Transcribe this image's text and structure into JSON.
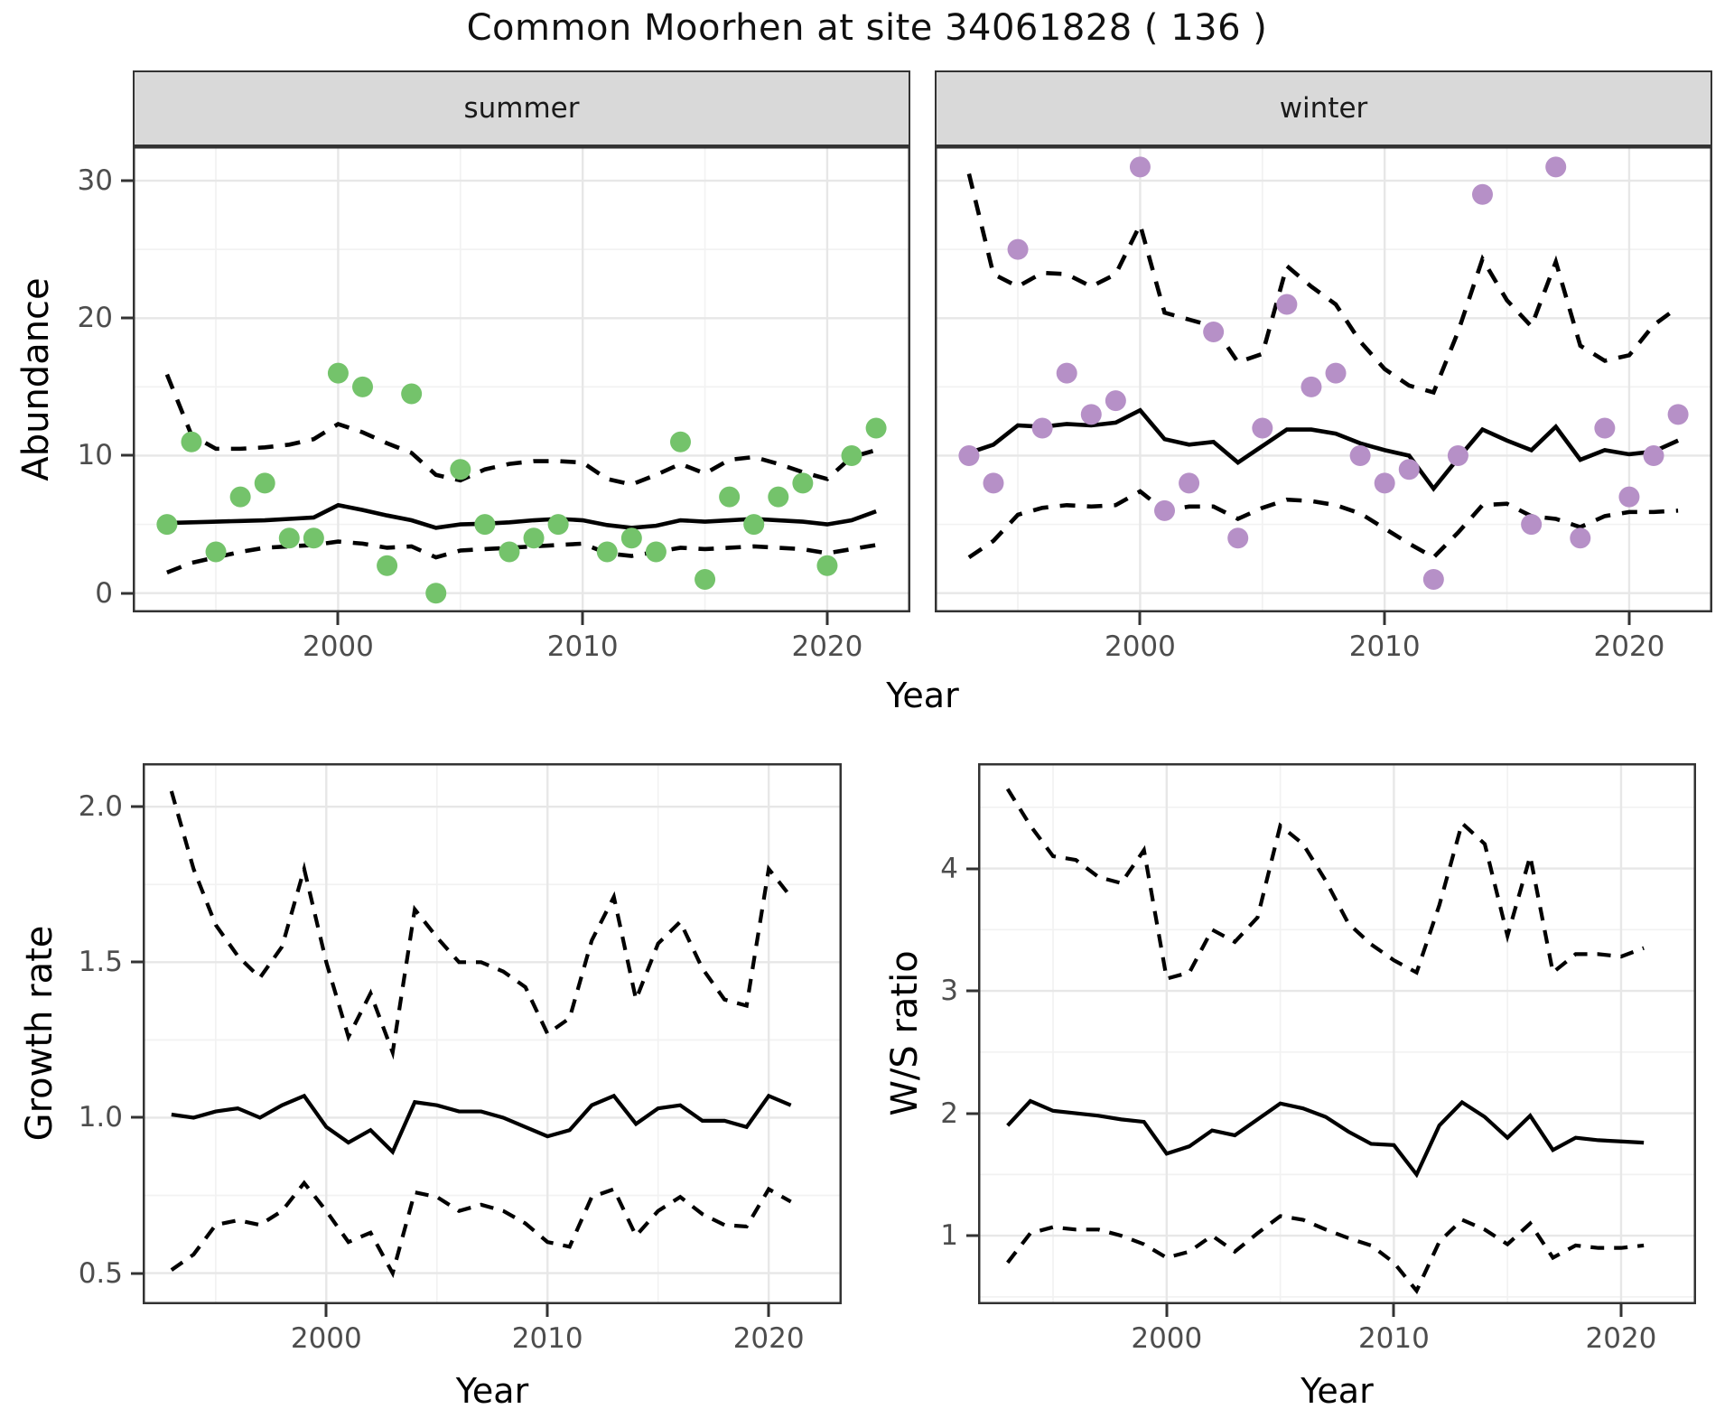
{
  "title": "Common Moorhen at site 34061828 ( 136 )",
  "facets": {
    "summer": "summer",
    "winter": "winter"
  },
  "axis_labels": {
    "y_top": "Abundance",
    "x": "Year",
    "y_growth": "Growth rate",
    "y_ws": "W/S ratio"
  },
  "colors": {
    "summer_point": "#74c36b",
    "winter_point": "#b690c7",
    "line": "#000000",
    "grid_major": "#e7e7e7",
    "grid_minor": "#f2f2f2",
    "strip_bg": "#d9d9d9",
    "panel_border": "#333333",
    "tick_label": "#4d4d4d"
  },
  "chart_data": [
    {
      "id": "summer",
      "type": "scatter",
      "facet_label": "summer",
      "xlabel": "Year",
      "ylabel": "Abundance",
      "xlim": [
        1991.6,
        2023.4
      ],
      "ylim": [
        -1.4,
        32.5
      ],
      "grid": true,
      "line_width": 4.6,
      "dash": "17 13",
      "point_radius": 11.5,
      "point_color": "#74c36b",
      "x_ticks": {
        "values": [
          2000,
          2010,
          2020
        ],
        "labels": [
          "2000",
          "2010",
          "2020"
        ],
        "minor": [
          1995,
          2005,
          2015
        ]
      },
      "y_ticks": {
        "values": [
          0,
          10,
          20,
          30
        ],
        "labels": [
          "0",
          "10",
          "20",
          "30"
        ],
        "minor": [
          5,
          15,
          25
        ]
      },
      "points": {
        "years": [
          1993,
          1994,
          1995,
          1996,
          1997,
          1998,
          1999,
          2000,
          2001,
          2002,
          2003,
          2004,
          2005,
          2006,
          2007,
          2008,
          2009,
          2011,
          2012,
          2013,
          2014,
          2015,
          2016,
          2017,
          2018,
          2019,
          2020,
          2021,
          2022
        ],
        "values": [
          5,
          11,
          3,
          7,
          8,
          4,
          4,
          16,
          15,
          2,
          14.5,
          0,
          9,
          5,
          3,
          4,
          5,
          3,
          4,
          3,
          11,
          1,
          7,
          5,
          7,
          8,
          2,
          10,
          12
        ]
      },
      "series": [
        {
          "name": "upper_95ci",
          "style": "dashed",
          "year_start": 1993,
          "values": [
            15.9,
            11.5,
            10.5,
            10.5,
            10.6,
            10.8,
            11.2,
            12.3,
            11.7,
            10.9,
            10.2,
            8.6,
            8.2,
            9.0,
            9.4,
            9.6,
            9.6,
            9.5,
            8.3,
            7.9,
            8.6,
            9.4,
            8.7,
            9.7,
            9.9,
            9.4,
            8.8,
            8.3,
            9.9,
            10.4
          ]
        },
        {
          "name": "lower_95ci",
          "style": "dashed",
          "year_start": 1993,
          "values": [
            1.5,
            2.2,
            2.6,
            3.0,
            3.3,
            3.4,
            3.5,
            3.75,
            3.6,
            3.3,
            3.4,
            2.6,
            3.1,
            3.2,
            3.3,
            3.4,
            3.5,
            3.6,
            2.9,
            2.7,
            3.0,
            3.3,
            3.2,
            3.3,
            3.4,
            3.3,
            3.2,
            2.9,
            3.2,
            3.5
          ]
        },
        {
          "name": "smoothed_mean",
          "style": "solid",
          "year_start": 1993,
          "values": [
            5.1,
            5.15,
            5.2,
            5.25,
            5.3,
            5.4,
            5.5,
            6.4,
            6.05,
            5.65,
            5.3,
            4.75,
            5.0,
            5.05,
            5.15,
            5.3,
            5.4,
            5.3,
            4.95,
            4.75,
            4.9,
            5.3,
            5.2,
            5.3,
            5.4,
            5.3,
            5.2,
            5.0,
            5.3,
            5.95
          ]
        }
      ]
    },
    {
      "id": "winter",
      "type": "scatter",
      "facet_label": "winter",
      "xlabel": "Year",
      "ylabel": "Abundance",
      "xlim": [
        1991.6,
        2023.4
      ],
      "ylim": [
        -1.4,
        32.5
      ],
      "grid": true,
      "line_width": 4.6,
      "dash": "17 13",
      "point_radius": 11.5,
      "point_color": "#b690c7",
      "x_ticks": {
        "values": [
          2000,
          2010,
          2020
        ],
        "labels": [
          "2000",
          "2010",
          "2020"
        ],
        "minor": [
          1995,
          2005,
          2015
        ]
      },
      "y_ticks": {
        "values": [
          0,
          10,
          20,
          30
        ],
        "labels": [
          "0",
          "10",
          "20",
          "30"
        ],
        "minor": [
          5,
          15,
          25
        ]
      },
      "points": {
        "years": [
          1993,
          1994,
          1995,
          1996,
          1997,
          1998,
          1999,
          2000,
          2001,
          2002,
          2003,
          2004,
          2005,
          2006,
          2007,
          2008,
          2009,
          2010,
          2011,
          2012,
          2013,
          2014,
          2016,
          2017,
          2018,
          2019,
          2020,
          2021,
          2022
        ],
        "values": [
          10,
          8,
          25,
          12,
          16,
          13,
          14,
          31,
          6,
          8,
          19,
          4,
          12,
          21,
          15,
          16,
          10,
          8,
          9,
          1,
          10,
          29,
          5,
          31,
          4,
          12,
          7,
          10,
          13
        ]
      },
      "series": [
        {
          "name": "upper_95ci",
          "style": "dashed",
          "year_start": 1993,
          "values": [
            30.5,
            23.2,
            22.3,
            23.3,
            23.2,
            22.3,
            23.2,
            26.8,
            20.4,
            19.9,
            19.4,
            16.8,
            17.4,
            23.8,
            22.3,
            21.0,
            18.3,
            16.3,
            15.1,
            14.6,
            19.0,
            24.3,
            21.3,
            19.4,
            24.1,
            18.0,
            16.9,
            17.3,
            19.5,
            20.8
          ]
        },
        {
          "name": "lower_95ci",
          "style": "dashed",
          "year_start": 1993,
          "values": [
            2.6,
            3.8,
            5.7,
            6.2,
            6.4,
            6.3,
            6.4,
            7.4,
            6.0,
            6.3,
            6.3,
            5.4,
            6.2,
            6.8,
            6.7,
            6.4,
            5.8,
            4.7,
            3.6,
            2.6,
            4.4,
            6.4,
            6.5,
            5.6,
            5.4,
            4.8,
            5.6,
            5.9,
            5.9,
            6.0
          ]
        },
        {
          "name": "smoothed_mean",
          "style": "solid",
          "year_start": 1993,
          "values": [
            10.2,
            10.8,
            12.2,
            12.1,
            12.3,
            12.2,
            12.4,
            13.3,
            11.2,
            10.8,
            11.0,
            9.5,
            10.7,
            11.9,
            11.9,
            11.6,
            10.9,
            10.4,
            10.0,
            7.6,
            9.8,
            11.9,
            11.1,
            10.4,
            12.1,
            9.7,
            10.4,
            10.1,
            10.3,
            11.1
          ]
        }
      ]
    },
    {
      "id": "growth",
      "type": "line",
      "xlabel": "Year",
      "ylabel": "Growth rate",
      "xlim": [
        1991.7,
        2023.3
      ],
      "ylim": [
        0.4,
        2.14
      ],
      "grid": true,
      "line_width": 4.2,
      "dash": "15 11",
      "x_ticks": {
        "values": [
          2000,
          2010,
          2020
        ],
        "labels": [
          "2000",
          "2010",
          "2020"
        ],
        "minor": [
          1995,
          2005,
          2015
        ]
      },
      "y_ticks": {
        "values": [
          0.5,
          1.0,
          1.5,
          2.0
        ],
        "labels": [
          "0.5",
          "1.0",
          "1.5",
          "2.0"
        ],
        "minor": [
          0.75,
          1.25,
          1.75
        ]
      },
      "series": [
        {
          "name": "upper_95ci",
          "style": "dashed",
          "year_start": 1993,
          "values": [
            2.05,
            1.8,
            1.62,
            1.52,
            1.45,
            1.55,
            1.8,
            1.5,
            1.26,
            1.4,
            1.21,
            1.67,
            1.58,
            1.5,
            1.5,
            1.47,
            1.42,
            1.27,
            1.32,
            1.57,
            1.71,
            1.38,
            1.56,
            1.63,
            1.48,
            1.38,
            1.36,
            1.8,
            1.71
          ]
        },
        {
          "name": "lower_95ci",
          "style": "dashed",
          "year_start": 1993,
          "values": [
            0.51,
            0.56,
            0.655,
            0.67,
            0.655,
            0.7,
            0.79,
            0.7,
            0.6,
            0.63,
            0.5,
            0.76,
            0.745,
            0.7,
            0.72,
            0.7,
            0.66,
            0.6,
            0.585,
            0.745,
            0.77,
            0.62,
            0.7,
            0.745,
            0.69,
            0.655,
            0.65,
            0.77,
            0.73
          ]
        },
        {
          "name": "growth_rate",
          "style": "solid",
          "year_start": 1993,
          "values": [
            1.01,
            1.0,
            1.02,
            1.03,
            1.0,
            1.04,
            1.07,
            0.97,
            0.92,
            0.96,
            0.89,
            1.05,
            1.04,
            1.02,
            1.02,
            1.0,
            0.97,
            0.94,
            0.96,
            1.04,
            1.07,
            0.98,
            1.03,
            1.04,
            0.99,
            0.99,
            0.97,
            1.07,
            1.04
          ]
        }
      ]
    },
    {
      "id": "ws",
      "type": "line",
      "xlabel": "Year",
      "ylabel": "W/S ratio",
      "xlim": [
        1991.7,
        2023.3
      ],
      "ylim": [
        0.44,
        4.86
      ],
      "grid": true,
      "line_width": 4.2,
      "dash": "15 11",
      "x_ticks": {
        "values": [
          2000,
          2010,
          2020
        ],
        "labels": [
          "2000",
          "2010",
          "2020"
        ],
        "minor": [
          1995,
          2005,
          2015
        ]
      },
      "y_ticks": {
        "values": [
          1,
          2,
          3,
          4
        ],
        "labels": [
          "1",
          "2",
          "3",
          "4"
        ],
        "minor": [
          0.5,
          1.5,
          2.5,
          3.5,
          4.5
        ]
      },
      "series": [
        {
          "name": "upper_95ci",
          "style": "dashed",
          "year_start": 1993,
          "values": [
            4.65,
            4.35,
            4.1,
            4.07,
            3.93,
            3.88,
            4.15,
            3.1,
            3.15,
            3.5,
            3.4,
            3.6,
            4.35,
            4.2,
            3.9,
            3.55,
            3.38,
            3.25,
            3.15,
            3.7,
            4.37,
            4.2,
            3.45,
            4.1,
            3.15,
            3.3,
            3.3,
            3.28,
            3.35
          ]
        },
        {
          "name": "lower_95ci",
          "style": "dashed",
          "year_start": 1993,
          "values": [
            0.78,
            1.02,
            1.07,
            1.05,
            1.05,
            1.0,
            0.93,
            0.82,
            0.87,
            1.0,
            0.87,
            1.02,
            1.16,
            1.13,
            1.05,
            0.98,
            0.92,
            0.78,
            0.55,
            0.95,
            1.13,
            1.05,
            0.93,
            1.1,
            0.82,
            0.92,
            0.9,
            0.9,
            0.92
          ]
        },
        {
          "name": "ws_ratio",
          "style": "solid",
          "year_start": 1993,
          "values": [
            1.9,
            2.1,
            2.02,
            2.0,
            1.98,
            1.95,
            1.93,
            1.67,
            1.73,
            1.86,
            1.82,
            1.95,
            2.08,
            2.04,
            1.97,
            1.85,
            1.75,
            1.74,
            1.5,
            1.9,
            2.09,
            1.97,
            1.8,
            1.98,
            1.7,
            1.8,
            1.78,
            1.77,
            1.76
          ]
        }
      ]
    }
  ]
}
